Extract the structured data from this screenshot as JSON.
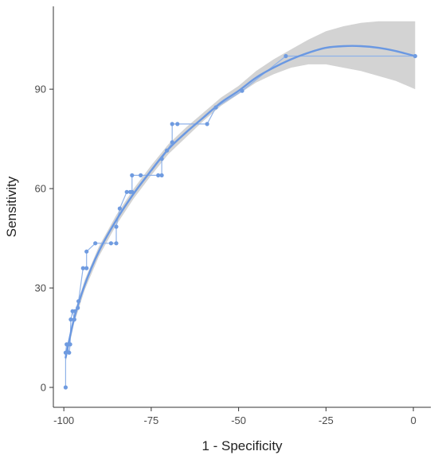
{
  "chart_data": {
    "type": "line",
    "title": "",
    "xlabel": "1 - Specificity",
    "ylabel": "Sensitivity",
    "xlim": [
      -103,
      5
    ],
    "ylim": [
      -6,
      115
    ],
    "x_ticks": [
      -100,
      -75,
      -50,
      -25,
      0
    ],
    "x_tick_labels": [
      "-100",
      "-75",
      "-50",
      "-25",
      "0"
    ],
    "y_ticks": [
      0,
      30,
      60,
      90
    ],
    "y_tick_labels": [
      "0",
      "30",
      "60",
      "90"
    ],
    "grid": false,
    "legend": "none",
    "colors": {
      "points": "#6f9be0",
      "step_line": "#8fb2e8",
      "smooth": "#6a98e2",
      "band": "#d3d3d3",
      "axis": "#333333"
    },
    "series": [
      {
        "kind": "empirical",
        "x": [
          -99.5,
          -99.5,
          -99.2,
          -98.5,
          -98.2,
          -98.0,
          -97.5,
          -97.0,
          -96.8,
          -96.0,
          -95.8,
          -94.5,
          -93.5,
          -93.5,
          -91.0,
          -86.5,
          -85.0,
          -85.0,
          -84.0,
          -82.0,
          -81.0,
          -80.5,
          -80.5,
          -78.0,
          -73.0,
          -72.0,
          -72.0,
          -70.5,
          -69.0,
          -69.0,
          -67.5,
          -59.0,
          -56.5,
          -49.0,
          -36.5,
          0.5
        ],
        "y": [
          0,
          10.5,
          13.0,
          10.5,
          13.0,
          20.5,
          23.0,
          20.5,
          23.0,
          24.0,
          26.0,
          36.0,
          36.0,
          41.0,
          43.5,
          43.5,
          43.5,
          48.5,
          54.0,
          59.0,
          59.0,
          59.0,
          64.0,
          64.0,
          64.0,
          64.0,
          69.0,
          71.5,
          74.0,
          79.5,
          79.5,
          79.5,
          84.5,
          89.5,
          100.0,
          100.0
        ]
      },
      {
        "kind": "smooth",
        "x": [
          -99.5,
          -97.0,
          -94.0,
          -90.0,
          -85.0,
          -80.0,
          -75.0,
          -70.0,
          -65.0,
          -60.0,
          -55.0,
          -50.0,
          -45.0,
          -40.0,
          -35.0,
          -30.0,
          -25.0,
          -20.0,
          -15.0,
          -10.0,
          -5.0,
          0.5
        ],
        "y": [
          9.0,
          21.0,
          31.0,
          41.0,
          50.5,
          58.5,
          65.5,
          72.0,
          77.0,
          81.5,
          86.0,
          89.5,
          93.5,
          96.5,
          99.0,
          101.0,
          102.5,
          103.0,
          103.0,
          102.5,
          101.5,
          100.0
        ],
        "lower": [
          7.5,
          19.5,
          29.5,
          39.5,
          49.0,
          57.0,
          64.0,
          70.5,
          75.5,
          80.5,
          85.0,
          88.5,
          92.0,
          94.5,
          96.5,
          97.5,
          97.5,
          96.5,
          95.5,
          94.0,
          92.5,
          90.0
        ],
        "upper": [
          10.5,
          22.5,
          32.5,
          42.5,
          52.0,
          60.0,
          67.0,
          73.5,
          78.5,
          83.0,
          87.5,
          91.0,
          95.5,
          99.0,
          102.0,
          105.0,
          107.5,
          109.0,
          110.0,
          110.5,
          110.5,
          110.5
        ]
      }
    ]
  }
}
